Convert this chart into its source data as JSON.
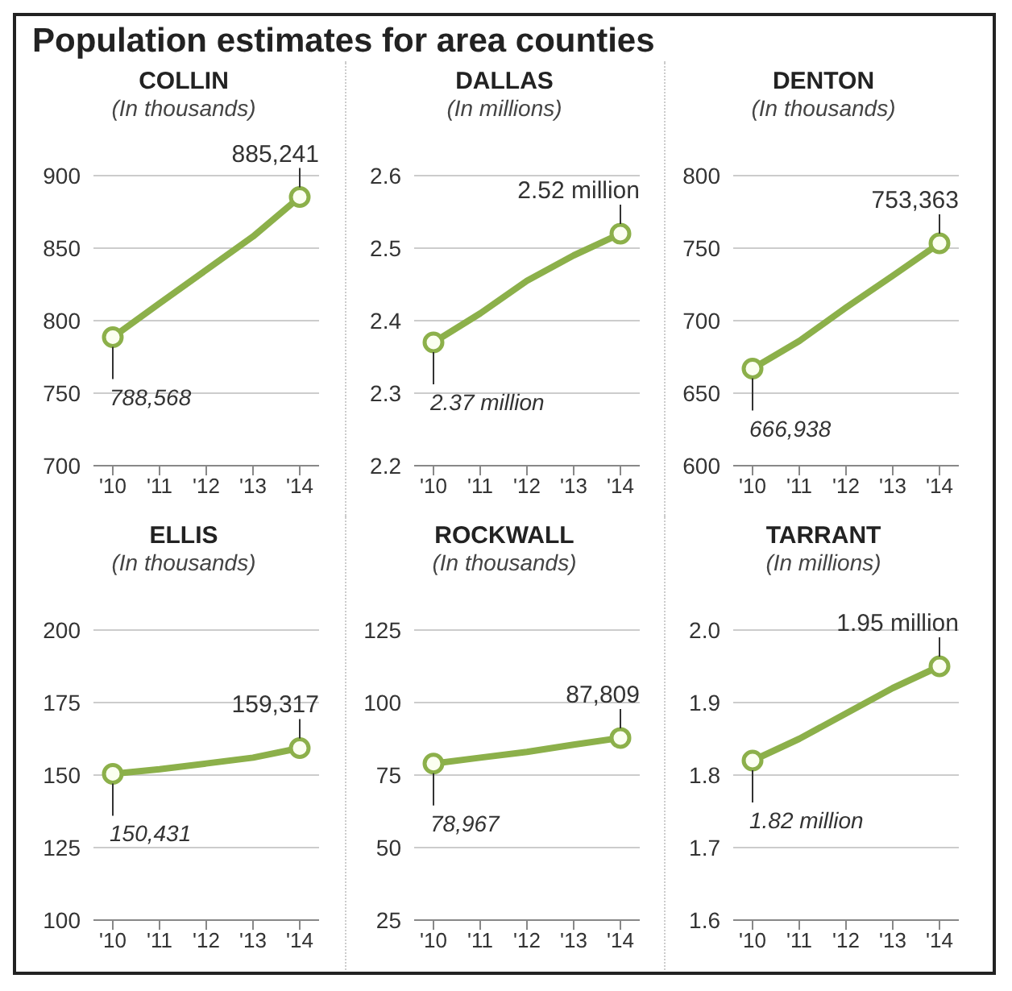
{
  "chart_data": [
    {
      "type": "other",
      "title": "Population estimates for area counties"
    },
    {
      "type": "line",
      "title": "COLLIN",
      "subtitle": "(In thousands)",
      "categories": [
        "'10",
        "'11",
        "'12",
        "'13",
        "'14"
      ],
      "series": [
        {
          "color": "#8cb04a",
          "marker": "none",
          "values": [
            788.568,
            812,
            835,
            858,
            885.241
          ]
        },
        {
          "type": "scatter",
          "color": "#8cb04a",
          "marker": "circle",
          "x": [
            "'10",
            "'14"
          ],
          "values": [
            788.568,
            885.241
          ]
        }
      ],
      "annotations": [
        {
          "text": "788,568",
          "x": "'10",
          "y": 788.568
        },
        {
          "text": "885,241",
          "x": "'14",
          "y": 885.241
        }
      ],
      "ylim": [
        700,
        900
      ],
      "yticks": [
        700,
        750,
        800,
        850,
        900
      ],
      "grid": "y"
    },
    {
      "type": "line",
      "title": "DALLAS",
      "subtitle": "(In millions)",
      "categories": [
        "'10",
        "'11",
        "'12",
        "'13",
        "'14"
      ],
      "series": [
        {
          "color": "#8cb04a",
          "marker": "none",
          "values": [
            2.37,
            2.41,
            2.455,
            2.49,
            2.52
          ]
        },
        {
          "type": "scatter",
          "color": "#8cb04a",
          "marker": "circle",
          "x": [
            "'10",
            "'14"
          ],
          "values": [
            2.37,
            2.52
          ]
        }
      ],
      "annotations": [
        {
          "text": "2.37 million",
          "x": "'10",
          "y": 2.37
        },
        {
          "text": "2.52 million",
          "x": "'14",
          "y": 2.52
        }
      ],
      "ylim": [
        2.2,
        2.6
      ],
      "yticks": [
        2.2,
        2.3,
        2.4,
        2.5,
        2.6
      ],
      "grid": "y"
    },
    {
      "type": "line",
      "title": "DENTON",
      "subtitle": "(In thousands)",
      "categories": [
        "'10",
        "'11",
        "'12",
        "'13",
        "'14"
      ],
      "series": [
        {
          "color": "#8cb04a",
          "marker": "none",
          "values": [
            666.938,
            686,
            709,
            731,
            753.363
          ]
        },
        {
          "type": "scatter",
          "color": "#8cb04a",
          "marker": "circle",
          "x": [
            "'10",
            "'14"
          ],
          "values": [
            666.938,
            753.363
          ]
        }
      ],
      "annotations": [
        {
          "text": "666,938",
          "x": "'10",
          "y": 666.938
        },
        {
          "text": "753,363",
          "x": "'14",
          "y": 753.363
        }
      ],
      "ylim": [
        600,
        800
      ],
      "yticks": [
        600,
        650,
        700,
        750,
        800
      ],
      "grid": "y"
    },
    {
      "type": "line",
      "title": "ELLIS",
      "subtitle": "(In thousands)",
      "categories": [
        "'10",
        "'11",
        "'12",
        "'13",
        "'14"
      ],
      "series": [
        {
          "color": "#8cb04a",
          "marker": "none",
          "values": [
            150.431,
            152,
            154,
            156,
            159.317
          ]
        },
        {
          "type": "scatter",
          "color": "#8cb04a",
          "marker": "circle",
          "x": [
            "'10",
            "'14"
          ],
          "values": [
            150.431,
            159.317
          ]
        }
      ],
      "annotations": [
        {
          "text": "150,431",
          "x": "'10",
          "y": 150.431
        },
        {
          "text": "159,317",
          "x": "'14",
          "y": 159.317
        }
      ],
      "ylim": [
        100,
        200
      ],
      "yticks": [
        100,
        125,
        150,
        175,
        200
      ],
      "grid": "y"
    },
    {
      "type": "line",
      "title": "ROCKWALL",
      "subtitle": "(In thousands)",
      "categories": [
        "'10",
        "'11",
        "'12",
        "'13",
        "'14"
      ],
      "series": [
        {
          "color": "#8cb04a",
          "marker": "none",
          "values": [
            78.967,
            81,
            83,
            85.5,
            87.809
          ]
        },
        {
          "type": "scatter",
          "color": "#8cb04a",
          "marker": "circle",
          "x": [
            "'10",
            "'14"
          ],
          "values": [
            78.967,
            87.809
          ]
        }
      ],
      "annotations": [
        {
          "text": "78,967",
          "x": "'10",
          "y": 78.967
        },
        {
          "text": "87,809",
          "x": "'14",
          "y": 87.809
        }
      ],
      "ylim": [
        25,
        125
      ],
      "yticks": [
        25,
        50,
        75,
        100,
        125
      ],
      "grid": "y"
    },
    {
      "type": "line",
      "title": "TARRANT",
      "subtitle": "(In millions)",
      "categories": [
        "'10",
        "'11",
        "'12",
        "'13",
        "'14"
      ],
      "series": [
        {
          "color": "#8cb04a",
          "marker": "none",
          "values": [
            1.82,
            1.85,
            1.885,
            1.92,
            1.95
          ]
        },
        {
          "type": "scatter",
          "color": "#8cb04a",
          "marker": "circle",
          "x": [
            "'10",
            "'14"
          ],
          "values": [
            1.82,
            1.95
          ]
        }
      ],
      "annotations": [
        {
          "text": "1.82 million",
          "x": "'10",
          "y": 1.82
        },
        {
          "text": "1.95 million",
          "x": "'14",
          "y": 1.95
        }
      ],
      "ylim": [
        1.6,
        2.0
      ],
      "yticks": [
        1.6,
        1.7,
        1.8,
        1.9,
        {
          "value": 2.0,
          "label": "2.0"
        }
      ],
      "grid": "y"
    }
  ]
}
